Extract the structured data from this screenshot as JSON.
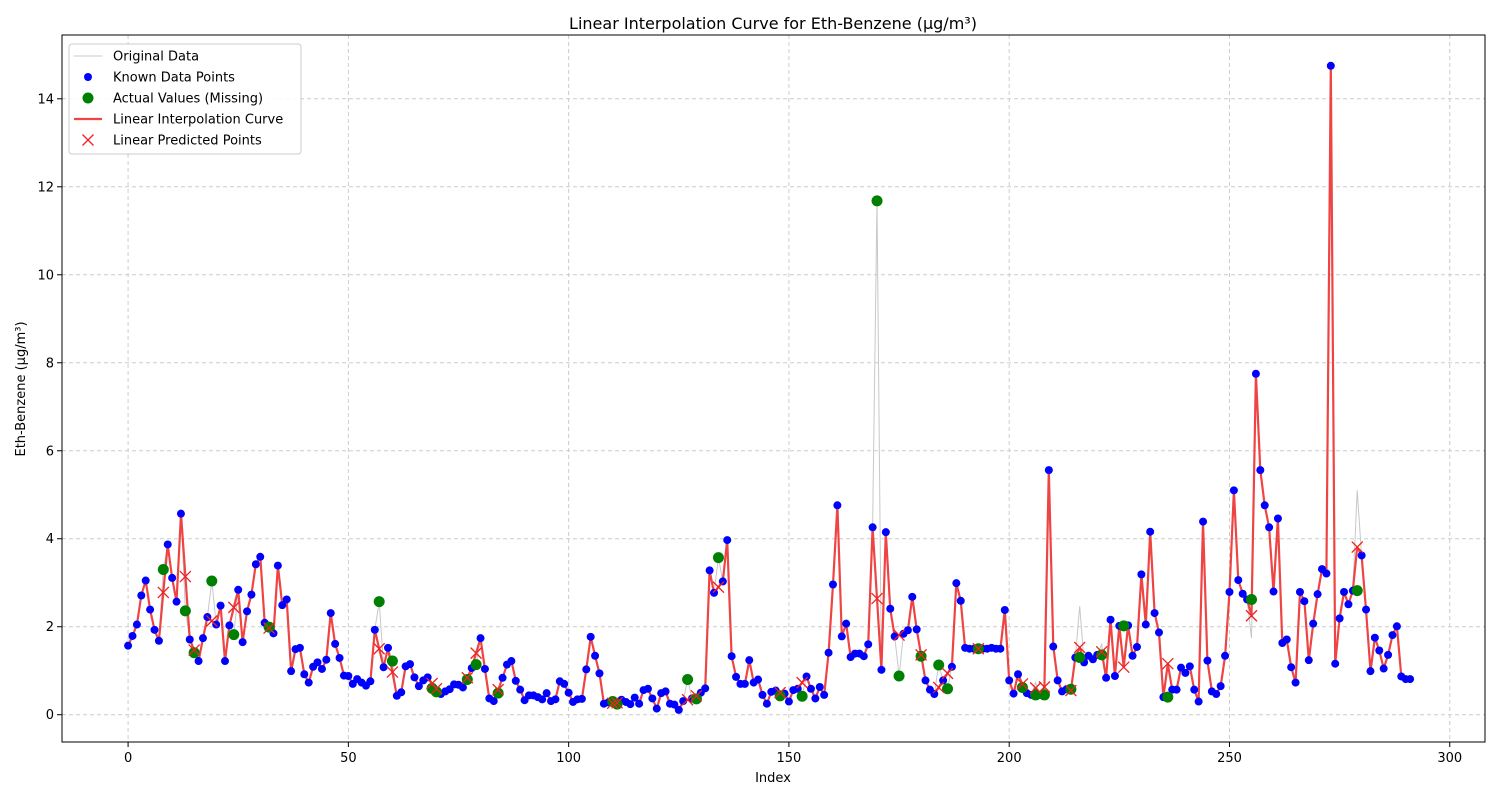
{
  "chart_data": {
    "type": "line",
    "title": "Linear Interpolation Curve for Eth-Benzene (µg/m³)",
    "xlabel": "Index",
    "ylabel": "Eth-Benzene (µg/m³)",
    "xlim": [
      -15,
      308
    ],
    "ylim": [
      -0.62,
      15.45
    ],
    "x_ticks": [
      0,
      50,
      100,
      150,
      200,
      250,
      300
    ],
    "y_ticks": [
      0,
      2,
      4,
      6,
      8,
      10,
      12,
      14
    ],
    "grid": true,
    "legend_position": "top-left",
    "legend": [
      {
        "label": "Original Data",
        "color": "#c8c8c8",
        "marker": "line-thin"
      },
      {
        "label": "Known Data Points",
        "color": "#0000ff",
        "marker": "dot"
      },
      {
        "label": "Actual Values (Missing)",
        "color": "#008000",
        "marker": "dot-large"
      },
      {
        "label": "Linear Interpolation Curve",
        "color": "#ee4444",
        "marker": "line-thick"
      },
      {
        "label": "Linear Predicted Points",
        "color": "#ee2222",
        "marker": "x"
      }
    ],
    "original_values": [
      1.57,
      1.79,
      2.05,
      2.71,
      3.05,
      2.39,
      1.93,
      1.68,
      3.3,
      3.87,
      3.11,
      2.57,
      4.57,
      2.36,
      1.71,
      1.41,
      1.22,
      1.74,
      2.22,
      3.04,
      2.05,
      2.48,
      1.22,
      2.03,
      1.82,
      2.84,
      1.65,
      2.35,
      2.73,
      3.42,
      3.59,
      2.09,
      1.99,
      1.85,
      3.39,
      2.49,
      2.62,
      0.99,
      1.49,
      1.52,
      0.92,
      0.73,
      1.09,
      1.19,
      1.04,
      1.25,
      2.31,
      1.61,
      1.29,
      0.89,
      0.88,
      0.7,
      0.81,
      0.73,
      0.66,
      0.76,
      1.93,
      2.57,
      1.08,
      1.52,
      1.22,
      0.43,
      0.51,
      1.1,
      1.15,
      0.85,
      0.65,
      0.78,
      0.85,
      0.6,
      0.52,
      0.47,
      0.53,
      0.58,
      0.69,
      0.68,
      0.62,
      0.8,
      1.06,
      1.14,
      1.74,
      1.04,
      0.37,
      0.31,
      0.49,
      0.84,
      1.14,
      1.22,
      0.77,
      0.57,
      0.33,
      0.44,
      0.44,
      0.4,
      0.35,
      0.49,
      0.31,
      0.35,
      0.76,
      0.7,
      0.5,
      0.29,
      0.35,
      0.36,
      1.03,
      1.77,
      1.34,
      0.94,
      0.25,
      0.28,
      0.3,
      0.24,
      0.34,
      0.29,
      0.24,
      0.39,
      0.25,
      0.56,
      0.59,
      0.37,
      0.14,
      0.49,
      0.53,
      0.25,
      0.23,
      0.11,
      0.31,
      0.8,
      0.37,
      0.36,
      0.5,
      0.6,
      3.28,
      2.77,
      3.57,
      3.03,
      3.97,
      1.33,
      0.86,
      0.7,
      0.7,
      1.24,
      0.73,
      0.8,
      0.45,
      0.25,
      0.52,
      0.55,
      0.43,
      0.48,
      0.3,
      0.56,
      0.59,
      0.42,
      0.87,
      0.59,
      0.37,
      0.63,
      0.45,
      1.41,
      2.96,
      4.76,
      1.78,
      2.07,
      1.31,
      1.39,
      1.39,
      1.33,
      1.6,
      4.26,
      11.68,
      1.02,
      4.15,
      2.41,
      1.78,
      0.88,
      1.84,
      1.92,
      2.68,
      1.94,
      1.33,
      0.78,
      0.57,
      0.47,
      1.13,
      0.78,
      0.59,
      1.09,
      2.99,
      2.59,
      1.52,
      1.5,
      1.5,
      1.5,
      1.5,
      1.5,
      1.52,
      1.5,
      1.5,
      2.38,
      0.78,
      0.48,
      0.92,
      0.62,
      0.49,
      0.45,
      0.73,
      0.45,
      0.53,
      5.56,
      1.55,
      0.78,
      0.53,
      0.58,
      0.6,
      1.3,
      2.47,
      1.19,
      1.34,
      1.26,
      1.36,
      1.6,
      0.84,
      2.16,
      0.88,
      2.02,
      1.28,
      2.03,
      1.34,
      1.54,
      3.19,
      2.05,
      4.16,
      2.31,
      1.87,
      0.4,
      0.45,
      0.57,
      0.57,
      1.07,
      0.95,
      1.1,
      0.57,
      0.3,
      4.39,
      1.23,
      0.53,
      0.47,
      0.65,
      1.34,
      2.79,
      5.1,
      3.06,
      2.75,
      2.62,
      1.74,
      7.75,
      5.56,
      4.76,
      4.26,
      2.8,
      4.46,
      1.63,
      1.71,
      1.08,
      0.73,
      2.79,
      2.58,
      1.24,
      2.07,
      2.74,
      3.31,
      3.21,
      14.75,
      1.16,
      2.19,
      2.79,
      2.51,
      2.82,
      5.1,
      3.62,
      2.39,
      0.99,
      1.75,
      1.46,
      1.05,
      1.36,
      1.81,
      2.01,
      0.87,
      0.81,
      0.81
    ],
    "missing_actual": [
      {
        "x": 8,
        "y": 3.3
      },
      {
        "x": 13,
        "y": 2.36
      },
      {
        "x": 15,
        "y": 1.41
      },
      {
        "x": 19,
        "y": 3.04
      },
      {
        "x": 24,
        "y": 1.82
      },
      {
        "x": 32,
        "y": 1.99
      },
      {
        "x": 57,
        "y": 2.57
      },
      {
        "x": 60,
        "y": 1.22
      },
      {
        "x": 69,
        "y": 0.6
      },
      {
        "x": 70,
        "y": 0.52
      },
      {
        "x": 77,
        "y": 0.8
      },
      {
        "x": 79,
        "y": 1.14
      },
      {
        "x": 84,
        "y": 0.49
      },
      {
        "x": 110,
        "y": 0.3
      },
      {
        "x": 111,
        "y": 0.24
      },
      {
        "x": 127,
        "y": 0.8
      },
      {
        "x": 129,
        "y": 0.36
      },
      {
        "x": 134,
        "y": 3.57
      },
      {
        "x": 148,
        "y": 0.43
      },
      {
        "x": 153,
        "y": 0.42
      },
      {
        "x": 170,
        "y": 11.68
      },
      {
        "x": 175,
        "y": 0.88
      },
      {
        "x": 180,
        "y": 1.33
      },
      {
        "x": 184,
        "y": 1.13
      },
      {
        "x": 186,
        "y": 0.59
      },
      {
        "x": 193,
        "y": 1.5
      },
      {
        "x": 203,
        "y": 0.62
      },
      {
        "x": 206,
        "y": 0.45
      },
      {
        "x": 208,
        "y": 0.45
      },
      {
        "x": 214,
        "y": 0.58
      },
      {
        "x": 216,
        "y": 1.3
      },
      {
        "x": 221,
        "y": 1.36
      },
      {
        "x": 226,
        "y": 2.02
      },
      {
        "x": 236,
        "y": 0.4
      },
      {
        "x": 255,
        "y": 2.62
      },
      {
        "x": 279,
        "y": 2.82
      }
    ],
    "predicted": [
      {
        "x": 8,
        "y": 2.78
      },
      {
        "x": 13,
        "y": 3.14
      },
      {
        "x": 15,
        "y": 1.47
      },
      {
        "x": 19,
        "y": 2.13
      },
      {
        "x": 24,
        "y": 2.44
      },
      {
        "x": 32,
        "y": 1.97
      },
      {
        "x": 57,
        "y": 1.5
      },
      {
        "x": 60,
        "y": 0.97
      },
      {
        "x": 69,
        "y": 0.71
      },
      {
        "x": 70,
        "y": 0.59
      },
      {
        "x": 77,
        "y": 0.84
      },
      {
        "x": 79,
        "y": 1.4
      },
      {
        "x": 84,
        "y": 0.57
      },
      {
        "x": 110,
        "y": 0.26
      },
      {
        "x": 111,
        "y": 0.27
      },
      {
        "x": 127,
        "y": 0.34
      },
      {
        "x": 129,
        "y": 0.43
      },
      {
        "x": 134,
        "y": 2.9
      },
      {
        "x": 148,
        "y": 0.5
      },
      {
        "x": 153,
        "y": 0.73
      },
      {
        "x": 170,
        "y": 2.64
      },
      {
        "x": 175,
        "y": 1.81
      },
      {
        "x": 180,
        "y": 1.36
      },
      {
        "x": 184,
        "y": 0.62
      },
      {
        "x": 186,
        "y": 0.94
      },
      {
        "x": 193,
        "y": 1.5
      },
      {
        "x": 203,
        "y": 0.7
      },
      {
        "x": 206,
        "y": 0.61
      },
      {
        "x": 208,
        "y": 0.63
      },
      {
        "x": 214,
        "y": 0.55
      },
      {
        "x": 216,
        "y": 1.53
      },
      {
        "x": 221,
        "y": 1.43
      },
      {
        "x": 226,
        "y": 1.08
      },
      {
        "x": 236,
        "y": 1.16
      },
      {
        "x": 255,
        "y": 2.25
      },
      {
        "x": 279,
        "y": 3.81
      }
    ]
  },
  "colors": {
    "original_line": "#c8c8c8",
    "known_points": "#0000ff",
    "missing_points": "#008000",
    "interp_line": "#ee4444",
    "predicted_x": "#ee2222",
    "grid": "#cccccc"
  }
}
